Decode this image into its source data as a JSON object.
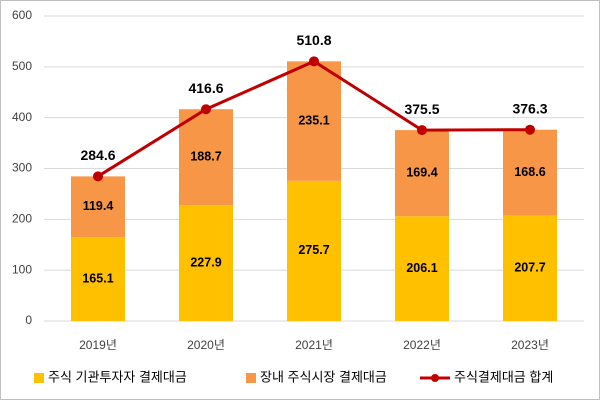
{
  "chart_data": {
    "type": "bar",
    "stacked": true,
    "categories": [
      "2019년",
      "2020년",
      "2021년",
      "2022년",
      "2023년"
    ],
    "series": [
      {
        "name": "주식 기관투자자 결제대금",
        "type": "bar",
        "color": "#FFC000",
        "values": [
          165.1,
          227.9,
          275.7,
          206.1,
          207.7
        ]
      },
      {
        "name": "장내 주식시장 결제대금",
        "type": "bar",
        "color": "#F79646",
        "values": [
          119.4,
          188.7,
          235.1,
          169.4,
          168.6
        ]
      },
      {
        "name": "주식결제대금 합계",
        "type": "line",
        "color": "#C00000",
        "values": [
          284.6,
          416.6,
          510.8,
          375.5,
          376.3
        ]
      }
    ],
    "ylim": [
      0,
      600
    ],
    "yticks": [
      0,
      100,
      200,
      300,
      400,
      500,
      600
    ],
    "grid": true
  }
}
